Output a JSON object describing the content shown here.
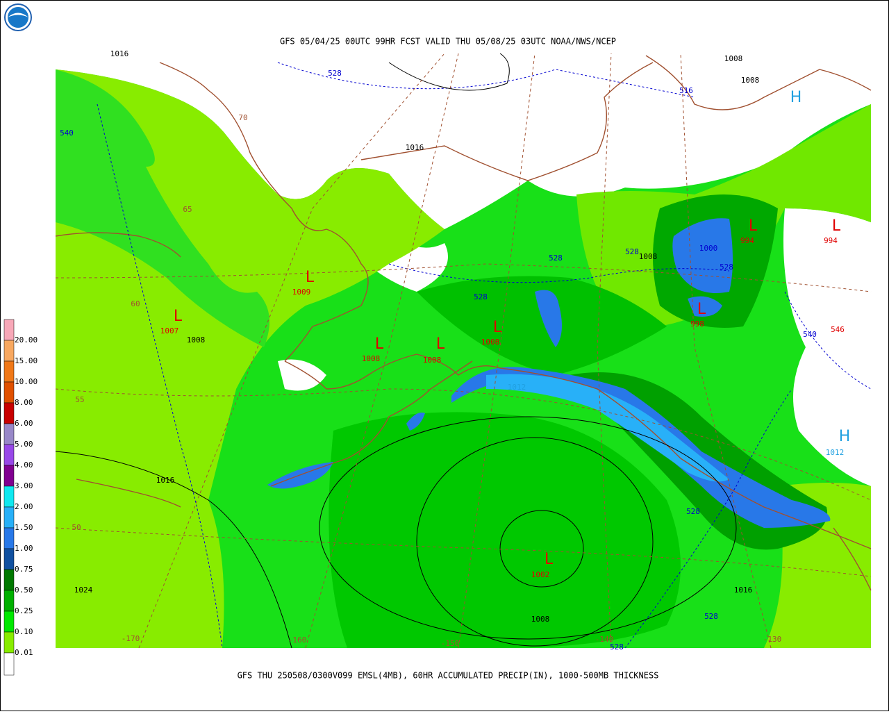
{
  "header": {
    "title": "GFS 05/04/25 00UTC 99HR FCST VALID THU 05/08/25 03UTC NOAA/NWS/NCEP"
  },
  "footer": {
    "caption": "GFS THU 250508/0300V099 EMSL(4MB), 60HR ACCUMULATED PRECIP(IN), 1000-500MB THICKNESS"
  },
  "legend": {
    "labels": [
      "20.00",
      "15.00",
      "10.00",
      "8.00",
      "6.00",
      "5.00",
      "4.00",
      "3.00",
      "2.00",
      "1.50",
      "1.00",
      "0.75",
      "0.50",
      "0.25",
      "0.10",
      "0.01"
    ],
    "colors": [
      "#f8a8b8",
      "#f8a860",
      "#f07818",
      "#e05000",
      "#c80000",
      "#9888c8",
      "#9848e8",
      "#800090",
      "#10e8f0",
      "#28b0f8",
      "#2878e8",
      "#1050a0",
      "#007800",
      "#00b000",
      "#00e800",
      "#88ec00",
      "#ffffff"
    ]
  },
  "map": {
    "labels": [
      {
        "text": "1016",
        "color": "#000000"
      },
      {
        "text": "528",
        "color": "#0000d0"
      },
      {
        "text": "1008",
        "color": "#000000"
      },
      {
        "text": "1008",
        "color": "#000000"
      },
      {
        "text": "516",
        "color": "#0000d0"
      },
      {
        "text": "H",
        "color": "#20a0e0"
      },
      {
        "text": "540",
        "color": "#0000d0"
      },
      {
        "text": "70",
        "color": "#a05030"
      },
      {
        "text": "1016",
        "color": "#000000"
      },
      {
        "text": "65",
        "color": "#a05030"
      },
      {
        "text": "L",
        "color": "#e00000"
      },
      {
        "text": "994",
        "color": "#e00000"
      },
      {
        "text": "L",
        "color": "#e00000"
      },
      {
        "text": "994",
        "color": "#e00000"
      },
      {
        "text": "1000",
        "color": "#0000d0"
      },
      {
        "text": "528",
        "color": "#0000d0"
      },
      {
        "text": "1008",
        "color": "#000000"
      },
      {
        "text": "528",
        "color": "#0000d0"
      },
      {
        "text": "528",
        "color": "#0000d0"
      },
      {
        "text": "L",
        "color": "#e00000"
      },
      {
        "text": "1009",
        "color": "#e00000"
      },
      {
        "text": "528",
        "color": "#0000d0"
      },
      {
        "text": "60",
        "color": "#a05030"
      },
      {
        "text": "L",
        "color": "#e00000"
      },
      {
        "text": "998",
        "color": "#e00000"
      },
      {
        "text": "L",
        "color": "#e00000"
      },
      {
        "text": "1007",
        "color": "#e00000"
      },
      {
        "text": "1008",
        "color": "#000000"
      },
      {
        "text": "L",
        "color": "#e00000"
      },
      {
        "text": "1008",
        "color": "#e00000"
      },
      {
        "text": "540",
        "color": "#0000d0"
      },
      {
        "text": "546",
        "color": "#e00000"
      },
      {
        "text": "L",
        "color": "#e00000"
      },
      {
        "text": "1008",
        "color": "#e00000"
      },
      {
        "text": "L",
        "color": "#e00000"
      },
      {
        "text": "1008",
        "color": "#e00000"
      },
      {
        "text": "1012",
        "color": "#20a0e0"
      },
      {
        "text": "55",
        "color": "#a05030"
      },
      {
        "text": "H",
        "color": "#20a0e0"
      },
      {
        "text": "1012",
        "color": "#20a0e0"
      },
      {
        "text": "1016",
        "color": "#000000"
      },
      {
        "text": "528",
        "color": "#0000d0"
      },
      {
        "text": "50",
        "color": "#a05030"
      },
      {
        "text": "L",
        "color": "#e00000"
      },
      {
        "text": "1002",
        "color": "#e00000"
      },
      {
        "text": "1024",
        "color": "#000000"
      },
      {
        "text": "1016",
        "color": "#000000"
      },
      {
        "text": "528",
        "color": "#0000d0"
      },
      {
        "text": "1008",
        "color": "#000000"
      },
      {
        "text": "-170",
        "color": "#a05030"
      },
      {
        "text": "-160",
        "color": "#a05030"
      },
      {
        "text": "-150",
        "color": "#a05030"
      },
      {
        "text": "-140",
        "color": "#a05030"
      },
      {
        "text": "-130",
        "color": "#a05030"
      },
      {
        "text": "528",
        "color": "#0000d0"
      }
    ]
  }
}
